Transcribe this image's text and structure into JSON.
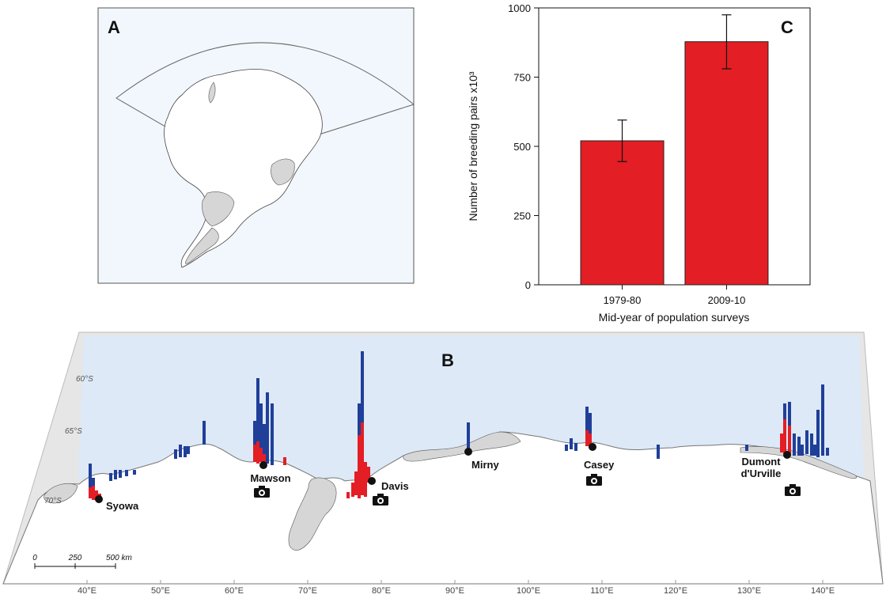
{
  "panels": {
    "a_label": "A",
    "b_label": "B",
    "c_label": "C"
  },
  "colors": {
    "bar_red": "#e31e24",
    "colony_blue": "#1f3f99",
    "ocean": "#dde9f7",
    "land": "#d6d6d6",
    "ice": "#ffffff"
  },
  "chart_data": {
    "type": "bar",
    "categories": [
      "1979-80",
      "2009-10"
    ],
    "values": [
      520,
      878
    ],
    "error_low": [
      445,
      780
    ],
    "error_high": [
      595,
      975
    ],
    "ylim": [
      0,
      1000
    ],
    "yticks": [
      "0",
      "250",
      "500",
      "750",
      "1000"
    ],
    "xlabel": "Mid-year of population surveys",
    "ylabel": "Number of breeding pairs x10³",
    "grid": false
  },
  "map": {
    "lat_labels": [
      "60°S",
      "65°S",
      "70°S"
    ],
    "lon_labels": [
      "40°E",
      "50°E",
      "60°E",
      "70°E",
      "80°E",
      "90°E",
      "100°E",
      "110°E",
      "120°E",
      "130°E",
      "140°E"
    ],
    "stations": [
      {
        "name": "Syowa",
        "lon": 41.5
      },
      {
        "name": "Mawson",
        "lon": 64.5
      },
      {
        "name": "Davis",
        "lon": 79.0
      },
      {
        "name": "Mirny",
        "lon": 92.5
      },
      {
        "name": "Casey",
        "lon": 109.5
      },
      {
        "name": "Dumont d'Urville",
        "lon": 136.0
      }
    ],
    "scale_labels": [
      "0",
      "250",
      "500 km"
    ],
    "photo_icon": "camera-icon"
  }
}
